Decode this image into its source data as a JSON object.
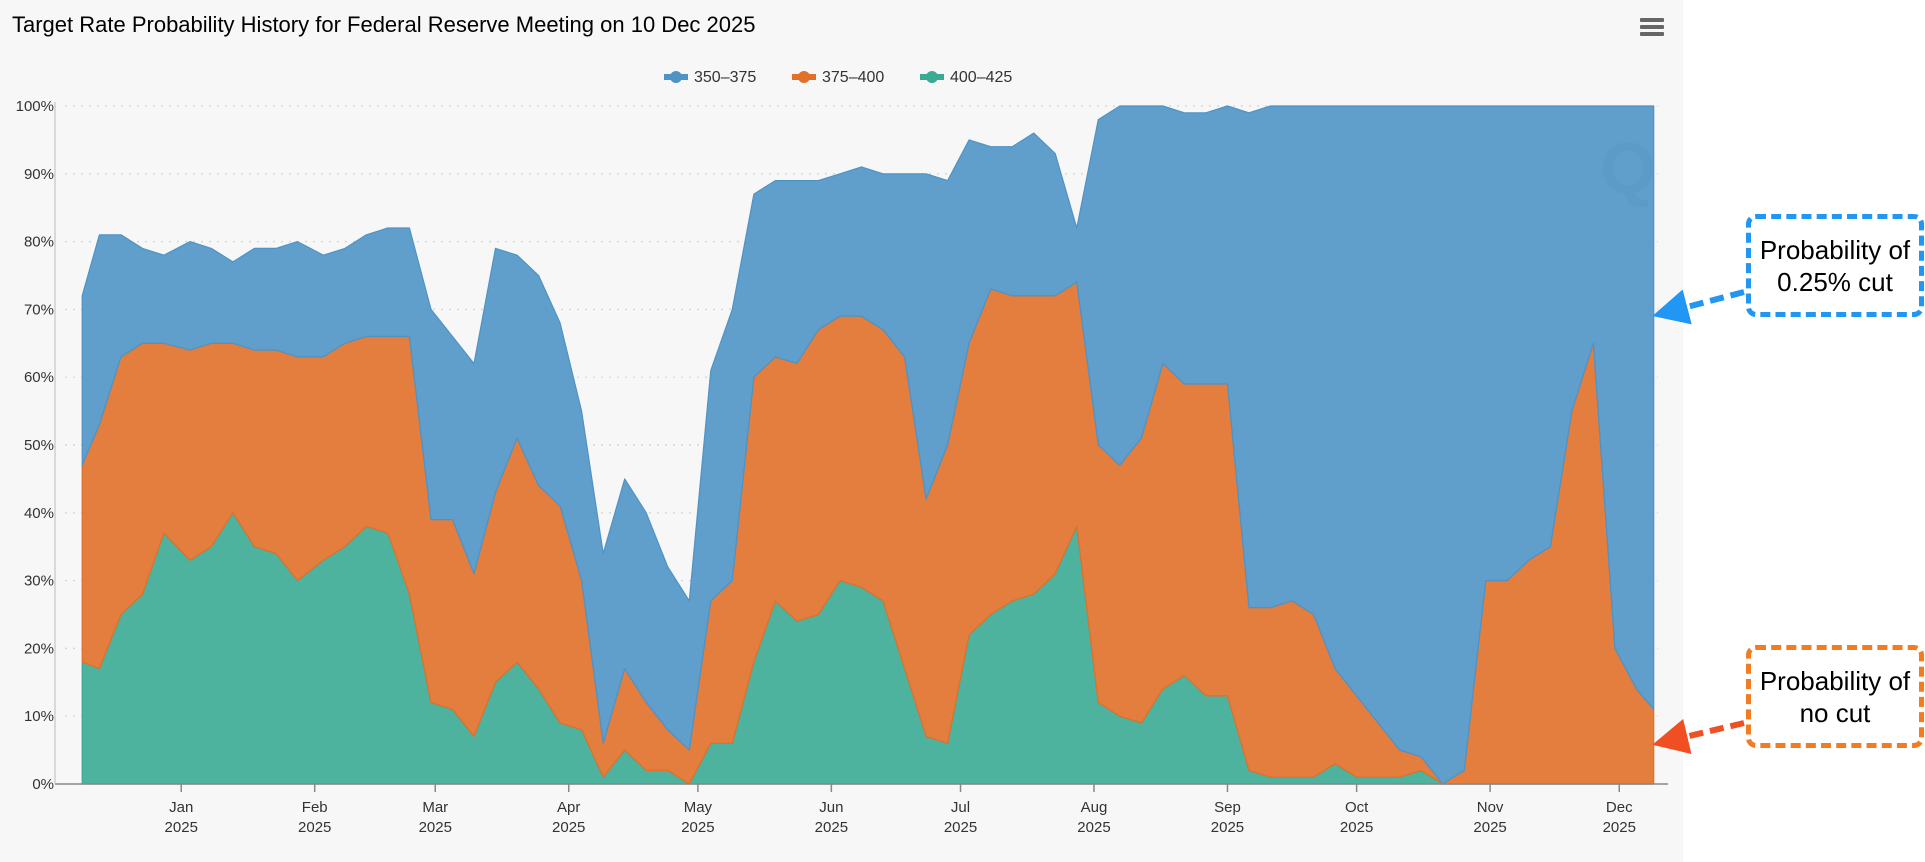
{
  "title": "Target Rate Probability History for Federal Reserve Meeting on 10 Dec 2025",
  "menu_icon": "hamburger-menu-icon",
  "watermark": "Q",
  "callouts": {
    "cut": "Probability of 0.25% cut",
    "no_cut": "Probability of no cut"
  },
  "chart_data": {
    "type": "area",
    "stacked": true,
    "title": "Target Rate Probability History for Federal Reserve Meeting on 10 Dec 2025",
    "xlabel": "",
    "ylabel": "",
    "legend_position": "top-center",
    "grid": "horizontal dotted",
    "y_ticks": [
      "0%",
      "10%",
      "20%",
      "30%",
      "40%",
      "50%",
      "60%",
      "70%",
      "80%",
      "90%",
      "100%"
    ],
    "ylim": [
      0,
      100
    ],
    "xlim": [
      "2024-12-05",
      "2025-12-10"
    ],
    "x_ticks": [
      {
        "date": "2025-01-01",
        "label": "Jan",
        "year": "2025"
      },
      {
        "date": "2025-02-01",
        "label": "Feb",
        "year": "2025"
      },
      {
        "date": "2025-03-01",
        "label": "Mar",
        "year": "2025"
      },
      {
        "date": "2025-04-01",
        "label": "Apr",
        "year": "2025"
      },
      {
        "date": "2025-05-01",
        "label": "May",
        "year": "2025"
      },
      {
        "date": "2025-06-01",
        "label": "Jun",
        "year": "2025"
      },
      {
        "date": "2025-07-01",
        "label": "Jul",
        "year": "2025"
      },
      {
        "date": "2025-08-01",
        "label": "Aug",
        "year": "2025"
      },
      {
        "date": "2025-09-01",
        "label": "Sep",
        "year": "2025"
      },
      {
        "date": "2025-10-01",
        "label": "Oct",
        "year": "2025"
      },
      {
        "date": "2025-11-01",
        "label": "Nov",
        "year": "2025"
      },
      {
        "date": "2025-12-01",
        "label": "Dec",
        "year": "2025"
      }
    ],
    "x": [
      "2024-12-09",
      "2024-12-13",
      "2024-12-18",
      "2024-12-23",
      "2024-12-28",
      "2025-01-03",
      "2025-01-08",
      "2025-01-13",
      "2025-01-18",
      "2025-01-23",
      "2025-01-28",
      "2025-02-03",
      "2025-02-08",
      "2025-02-13",
      "2025-02-18",
      "2025-02-23",
      "2025-02-28",
      "2025-03-05",
      "2025-03-10",
      "2025-03-15",
      "2025-03-20",
      "2025-03-25",
      "2025-03-30",
      "2025-04-04",
      "2025-04-09",
      "2025-04-14",
      "2025-04-19",
      "2025-04-24",
      "2025-04-29",
      "2025-05-04",
      "2025-05-09",
      "2025-05-14",
      "2025-05-19",
      "2025-05-24",
      "2025-05-29",
      "2025-06-03",
      "2025-06-08",
      "2025-06-13",
      "2025-06-18",
      "2025-06-23",
      "2025-06-28",
      "2025-07-03",
      "2025-07-08",
      "2025-07-13",
      "2025-07-18",
      "2025-07-23",
      "2025-07-28",
      "2025-08-02",
      "2025-08-07",
      "2025-08-12",
      "2025-08-17",
      "2025-08-22",
      "2025-08-27",
      "2025-09-01",
      "2025-09-06",
      "2025-09-11",
      "2025-09-16",
      "2025-09-21",
      "2025-09-26",
      "2025-10-01",
      "2025-10-06",
      "2025-10-11",
      "2025-10-16",
      "2025-10-21",
      "2025-10-26",
      "2025-10-31",
      "2025-11-05",
      "2025-11-10",
      "2025-11-15",
      "2025-11-20",
      "2025-11-25",
      "2025-11-30",
      "2025-12-05",
      "2025-12-09"
    ],
    "series": [
      {
        "name": "400-425",
        "color": "#3aaa94",
        "values": [
          18,
          17,
          25,
          28,
          37,
          33,
          35,
          40,
          35,
          34,
          30,
          33,
          35,
          38,
          37,
          28,
          12,
          11,
          7,
          15,
          18,
          14,
          9,
          8,
          1,
          5,
          2,
          2,
          0,
          6,
          6,
          18,
          27,
          24,
          25,
          30,
          29,
          27,
          17,
          7,
          6,
          22,
          25,
          27,
          28,
          31,
          38,
          12,
          10,
          9,
          14,
          16,
          13,
          13,
          2,
          1,
          1,
          1,
          3,
          1,
          1,
          1,
          2,
          0,
          0,
          0,
          0,
          0,
          0,
          0,
          0,
          0,
          0,
          0
        ]
      },
      {
        "name": "375-400",
        "color": "#e0702a",
        "values": [
          29,
          36,
          38,
          37,
          28,
          31,
          30,
          25,
          29,
          30,
          33,
          30,
          30,
          28,
          29,
          38,
          27,
          28,
          24,
          28,
          33,
          30,
          32,
          22,
          5,
          12,
          10,
          6,
          5,
          21,
          24,
          42,
          36,
          38,
          42,
          39,
          40,
          40,
          46,
          35,
          44,
          43,
          48,
          45,
          44,
          41,
          36,
          38,
          37,
          42,
          48,
          43,
          46,
          46,
          24,
          25,
          26,
          24,
          14,
          12,
          8,
          4,
          2,
          0,
          2,
          30,
          30,
          33,
          35,
          55,
          65,
          20,
          14,
          11
        ]
      },
      {
        "name": "350-375",
        "color": "#4f93c5",
        "values": [
          25,
          28,
          18,
          14,
          13,
          16,
          14,
          12,
          15,
          15,
          17,
          15,
          14,
          15,
          16,
          16,
          31,
          27,
          31,
          36,
          27,
          31,
          27,
          25,
          28,
          28,
          28,
          24,
          22,
          34,
          40,
          27,
          26,
          27,
          22,
          21,
          22,
          23,
          27,
          48,
          39,
          30,
          21,
          22,
          24,
          21,
          8,
          48,
          53,
          49,
          38,
          40,
          40,
          41,
          73,
          74,
          73,
          75,
          83,
          87,
          91,
          95,
          96,
          100,
          98,
          70,
          70,
          67,
          65,
          45,
          35,
          80,
          86,
          89
        ]
      }
    ]
  }
}
